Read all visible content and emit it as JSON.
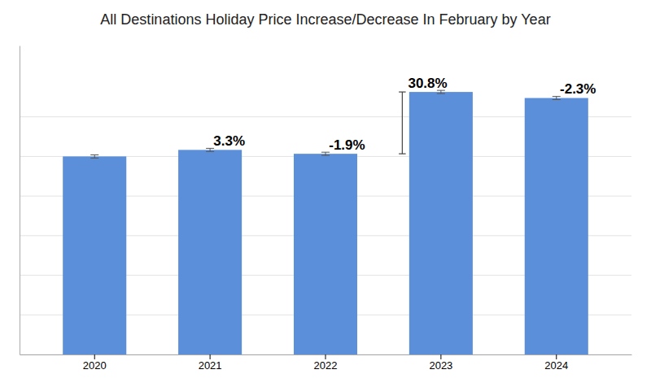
{
  "chart_data": {
    "type": "bar",
    "title": "All Destinations Holiday Price Increase/Decrease In February by Year",
    "categories": [
      "2020",
      "2021",
      "2022",
      "2023",
      "2024"
    ],
    "values": [
      5.0,
      5.165,
      5.067,
      6.628,
      6.475
    ],
    "errors": [
      0.04,
      0.04,
      0.04,
      0.04,
      0.04
    ],
    "annotations": [
      null,
      "3.3%",
      "-1.9%",
      "30.8%",
      "-2.3%"
    ],
    "color": "#5b8fd9",
    "ylim": [
      0,
      7.8
    ],
    "yticks": [
      0,
      1,
      2,
      3,
      4,
      5,
      6
    ],
    "grid": true,
    "tick_labels": "x"
  }
}
